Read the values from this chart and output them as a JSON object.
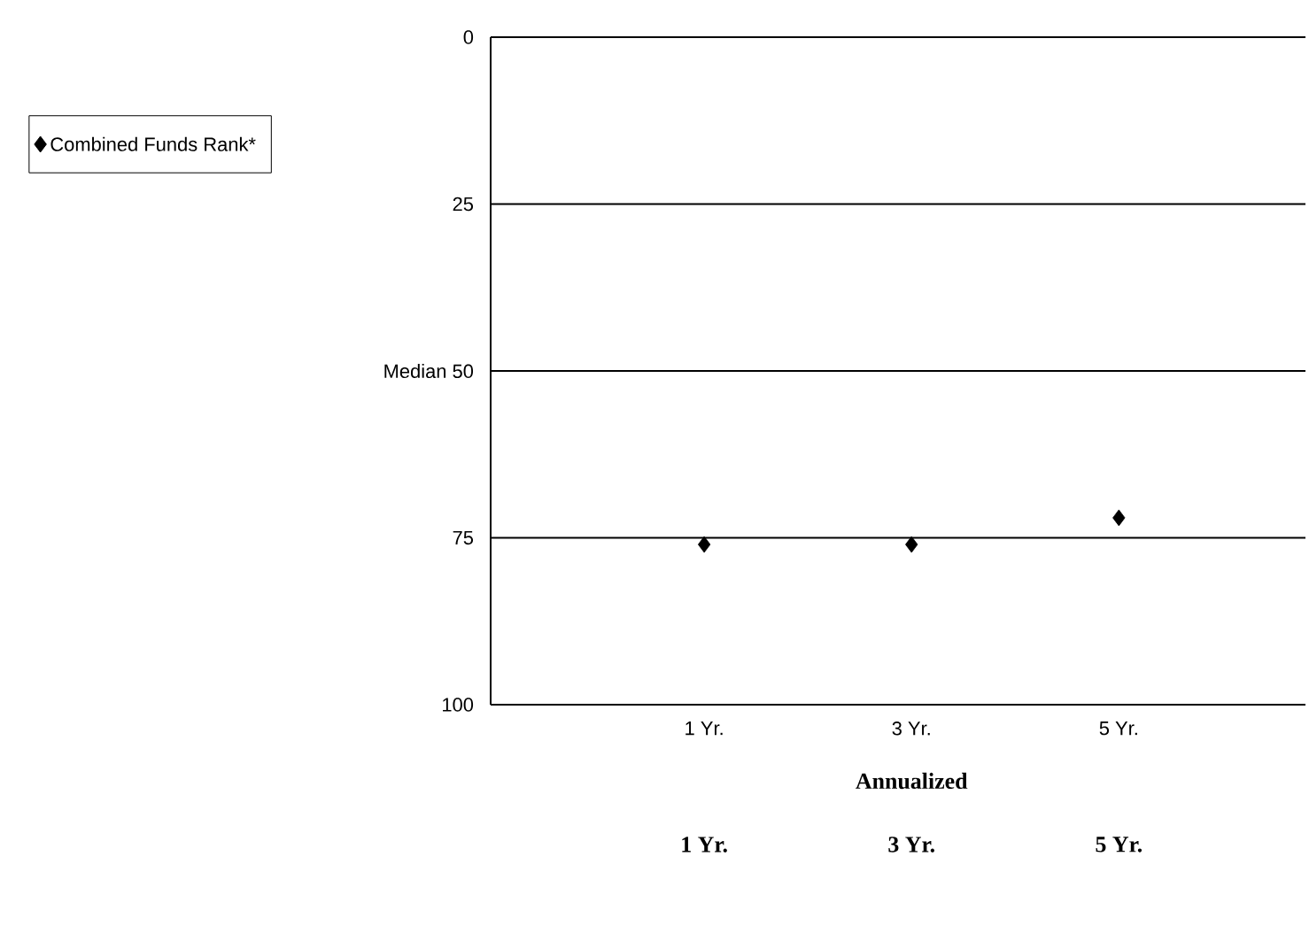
{
  "chart_data": {
    "type": "scatter",
    "categories": [
      "1 Yr.",
      "3 Yr.",
      "5 Yr."
    ],
    "series": [
      {
        "name": "Combined Funds Rank*",
        "color": "#000000",
        "values": [
          76,
          76,
          72
        ]
      }
    ],
    "ylim": [
      100,
      0
    ],
    "yticks": [
      0,
      25,
      {
        "value": 50,
        "label": "Median 50"
      },
      75,
      100
    ],
    "grid": "y",
    "marker": "diamond",
    "legend": "top left",
    "annotations": [
      "Annualized",
      "1 Yr.",
      "3 Yr.",
      "5 Yr."
    ]
  }
}
